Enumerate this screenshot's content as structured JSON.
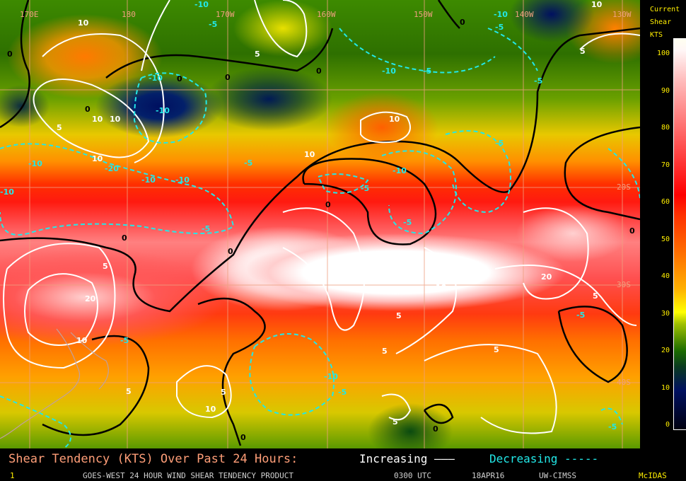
{
  "map": {
    "longitude_labels": [
      "170E",
      "180",
      "170W",
      "160W",
      "150W",
      "140W",
      "130W"
    ],
    "latitude_labels": [
      "20S",
      "30S",
      "40S"
    ],
    "contour_labels": {
      "increasing": [
        "10",
        "10",
        "5",
        "10",
        "5",
        "10",
        "10",
        "5",
        "10",
        "5",
        "20",
        "10",
        "5",
        "5",
        "10",
        "5",
        "5",
        "20",
        "10",
        "5",
        "5",
        "5",
        "10"
      ],
      "decreasing": [
        "-10",
        "-5",
        "-10",
        "-10",
        "-5",
        "-10",
        "-10",
        "-10",
        "-5",
        "-10",
        "-5",
        "-10",
        "-20",
        "-10",
        "-5",
        "-5",
        "-5",
        "-5",
        "-10",
        "-5",
        "-10",
        "-5",
        "-5",
        "-5",
        "-5"
      ],
      "zero": [
        "0",
        "0",
        "0",
        "0",
        "0",
        "0",
        "0",
        "0",
        "0",
        "0",
        "0",
        "0"
      ]
    }
  },
  "colorbar": {
    "title": [
      "Current",
      "Shear",
      "KTS"
    ],
    "ticks": [
      "100",
      "90",
      "80",
      "70",
      "60",
      "50",
      "40",
      "30",
      "20",
      "10",
      "0"
    ],
    "colors": [
      "#000010",
      "#001060",
      "#1a6a00",
      "#ffff00",
      "#ff7000",
      "#ff0000",
      "#ff8080",
      "#ffffff"
    ]
  },
  "footer": {
    "caption": "Shear Tendency (KTS) Over Past 24 Hours:",
    "increasing": "Increasing ———",
    "decreasing": "Decreasing -----",
    "frame": "1",
    "product": "GOES-WEST 24 HOUR WIND SHEAR TENDENCY PRODUCT",
    "time": "0300 UTC",
    "date": "18APR16",
    "source": "UW-CIMSS",
    "software": "McIDAS"
  },
  "colors": {
    "increasing": "#ffffff",
    "decreasing": "#22e8e8",
    "zero": "#000000",
    "grid": "#f0a080"
  }
}
